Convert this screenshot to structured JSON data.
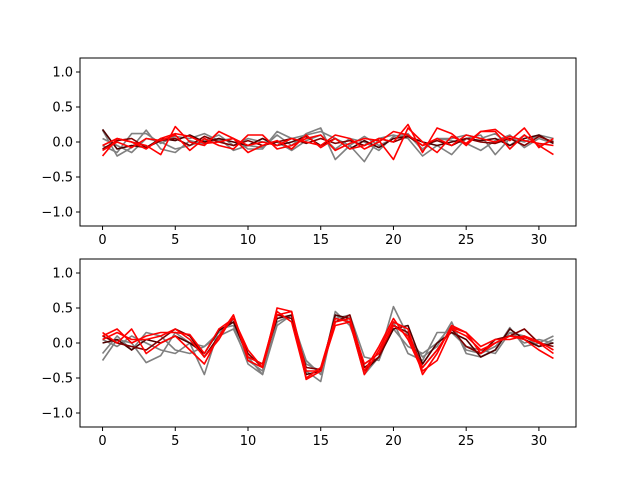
{
  "chart_data": [
    {
      "type": "line",
      "title": "",
      "xlabel": "",
      "ylabel": "",
      "xlim": [
        -1.55,
        32.55
      ],
      "ylim": [
        -1.2,
        1.2
      ],
      "xticks": [
        0,
        5,
        10,
        15,
        20,
        25,
        30
      ],
      "yticks": [
        -1.0,
        -0.5,
        0.0,
        0.5,
        1.0
      ],
      "xtick_labels": [
        "0",
        "5",
        "10",
        "15",
        "20",
        "25",
        "30"
      ],
      "ytick_labels": [
        "−1.0",
        "−0.5",
        "0.0",
        "0.5",
        "1.0"
      ],
      "grid": false,
      "x": [
        0,
        1,
        2,
        3,
        4,
        5,
        6,
        7,
        8,
        9,
        10,
        11,
        12,
        13,
        14,
        15,
        16,
        17,
        18,
        19,
        20,
        21,
        22,
        23,
        24,
        25,
        26,
        27,
        28,
        29,
        30,
        31
      ],
      "series": [
        {
          "color": "#808080",
          "values": [
            0.17,
            -0.2,
            -0.08,
            0.17,
            -0.1,
            -0.15,
            0.02,
            -0.03,
            0.05,
            -0.12,
            -0.05,
            -0.08,
            0.1,
            -0.05,
            0.12,
            0.2,
            -0.25,
            -0.05,
            -0.28,
            0.05,
            0.1,
            0.05,
            -0.2,
            -0.05,
            -0.18,
            0.05,
            0.1,
            -0.18,
            0.05,
            0.0,
            0.1,
            0.05
          ]
        },
        {
          "color": "#808080",
          "values": [
            -0.05,
            -0.15,
            0.12,
            0.12,
            -0.02,
            0.08,
            0.05,
            0.12,
            0.02,
            0.05,
            -0.1,
            -0.1,
            0.15,
            0.05,
            0.1,
            0.15,
            0.05,
            -0.05,
            0.08,
            -0.05,
            0.05,
            0.1,
            -0.1,
            0.05,
            0.05,
            0.1,
            0.05,
            0.12,
            -0.05,
            0.1,
            -0.05,
            0.02
          ]
        },
        {
          "color": "#808080",
          "values": [
            0.05,
            -0.05,
            -0.15,
            0.05,
            0.0,
            -0.1,
            -0.05,
            0.02,
            0.1,
            -0.05,
            0.05,
            0.0,
            0.0,
            -0.12,
            0.02,
            0.1,
            -0.1,
            0.05,
            0.0,
            -0.12,
            0.08,
            0.12,
            -0.12,
            0.05,
            0.02,
            -0.02,
            -0.12,
            0.02,
            0.1,
            -0.08,
            0.05,
            -0.02
          ]
        },
        {
          "color": "#4d0000",
          "values": [
            0.18,
            -0.1,
            -0.05,
            -0.08,
            0.05,
            0.02,
            0.1,
            0.0,
            0.05,
            0.0,
            -0.05,
            0.05,
            -0.05,
            0.0,
            0.08,
            -0.05,
            0.05,
            -0.1,
            0.02,
            -0.08,
            0.05,
            0.08,
            0.0,
            -0.05,
            0.0,
            0.05,
            0.02,
            0.05,
            -0.05,
            0.05,
            0.1,
            -0.02
          ]
        },
        {
          "color": "#800000",
          "values": [
            -0.1,
            0.02,
            0.05,
            -0.08,
            0.02,
            0.05,
            -0.05,
            0.08,
            0.0,
            -0.05,
            0.02,
            -0.05,
            0.0,
            0.05,
            -0.02,
            0.05,
            -0.02,
            0.02,
            -0.05,
            0.05,
            0.0,
            0.08,
            -0.05,
            0.02,
            -0.05,
            0.05,
            0.0,
            -0.02,
            0.05,
            -0.05,
            0.08,
            0.0
          ]
        },
        {
          "color": "#ff0000",
          "values": [
            -0.2,
            0.05,
            0.0,
            -0.05,
            -0.18,
            0.22,
            0.0,
            -0.05,
            0.15,
            0.05,
            -0.15,
            -0.05,
            0.02,
            -0.1,
            0.1,
            -0.08,
            0.05,
            -0.1,
            -0.05,
            0.05,
            0.0,
            0.25,
            -0.15,
            0.2,
            0.12,
            -0.05,
            0.15,
            0.18,
            0.02,
            0.2,
            -0.08,
            0.05
          ]
        },
        {
          "color": "#ff0000",
          "values": [
            -0.12,
            0.0,
            -0.08,
            0.05,
            0.02,
            0.1,
            -0.12,
            0.05,
            -0.05,
            -0.1,
            0.1,
            0.1,
            -0.1,
            -0.05,
            0.05,
            0.1,
            -0.12,
            -0.02,
            0.05,
            0.02,
            -0.25,
            0.2,
            0.0,
            -0.15,
            0.08,
            -0.02,
            0.15,
            0.15,
            -0.1,
            0.1,
            -0.05,
            -0.18
          ]
        },
        {
          "color": "#ff0000",
          "values": [
            -0.05,
            0.05,
            0.0,
            -0.1,
            0.05,
            0.12,
            0.08,
            -0.02,
            0.0,
            0.05,
            -0.05,
            0.0,
            -0.05,
            0.05,
            0.0,
            -0.05,
            0.1,
            0.05,
            -0.1,
            0.0,
            0.15,
            0.1,
            -0.05,
            0.05,
            -0.05,
            0.1,
            0.05,
            0.0,
            0.08,
            0.02,
            -0.02,
            -0.05
          ]
        }
      ]
    },
    {
      "type": "line",
      "title": "",
      "xlabel": "",
      "ylabel": "",
      "xlim": [
        -1.55,
        32.55
      ],
      "ylim": [
        -1.2,
        1.2
      ],
      "xticks": [
        0,
        5,
        10,
        15,
        20,
        25,
        30
      ],
      "yticks": [
        -1.0,
        -0.5,
        0.0,
        0.5,
        1.0
      ],
      "xtick_labels": [
        "0",
        "5",
        "10",
        "15",
        "20",
        "25",
        "30"
      ],
      "ytick_labels": [
        "−1.0",
        "−0.5",
        "0.0",
        "0.5",
        "1.0"
      ],
      "grid": false,
      "x": [
        0,
        1,
        2,
        3,
        4,
        5,
        6,
        7,
        8,
        9,
        10,
        11,
        12,
        13,
        14,
        15,
        16,
        17,
        18,
        19,
        20,
        21,
        22,
        23,
        24,
        25,
        26,
        27,
        28,
        29,
        30,
        31
      ],
      "series": [
        {
          "color": "#808080",
          "values": [
            -0.25,
            0.05,
            0.0,
            -0.28,
            -0.18,
            0.15,
            0.0,
            -0.45,
            0.2,
            0.25,
            -0.3,
            -0.45,
            0.3,
            0.4,
            -0.4,
            -0.55,
            0.4,
            0.3,
            -0.45,
            -0.2,
            0.52,
            0.1,
            -0.2,
            -0.05,
            0.3,
            -0.15,
            -0.2,
            -0.1,
            0.22,
            -0.05,
            0.0,
            0.1
          ]
        },
        {
          "color": "#808080",
          "values": [
            -0.15,
            0.1,
            -0.1,
            0.15,
            0.1,
            -0.1,
            -0.15,
            -0.05,
            0.15,
            0.3,
            -0.2,
            -0.45,
            0.25,
            0.4,
            -0.3,
            -0.4,
            0.35,
            0.4,
            -0.2,
            -0.25,
            0.3,
            -0.15,
            -0.25,
            0.15,
            0.15,
            -0.05,
            -0.1,
            -0.15,
            0.15,
            0.1,
            -0.05,
            0.05
          ]
        },
        {
          "color": "#808080",
          "values": [
            0.05,
            -0.05,
            0.1,
            0.0,
            -0.1,
            -0.15,
            0.0,
            -0.05,
            0.1,
            0.2,
            -0.25,
            -0.4,
            0.4,
            0.35,
            -0.25,
            -0.45,
            0.45,
            0.25,
            -0.3,
            -0.15,
            0.2,
            -0.05,
            -0.15,
            0.0,
            0.25,
            -0.1,
            -0.15,
            -0.05,
            0.15,
            0.0,
            0.05,
            0.0
          ]
        },
        {
          "color": "#4d0000",
          "values": [
            0.0,
            0.05,
            -0.1,
            0.05,
            0.0,
            0.1,
            0.0,
            -0.15,
            0.18,
            0.3,
            -0.2,
            -0.3,
            0.35,
            0.4,
            -0.45,
            -0.4,
            0.4,
            0.35,
            -0.4,
            -0.2,
            0.2,
            0.25,
            -0.3,
            0.0,
            0.15,
            0.05,
            -0.2,
            -0.1,
            0.2,
            0.05,
            -0.05,
            0.0
          ]
        },
        {
          "color": "#800000",
          "values": [
            0.1,
            0.0,
            -0.05,
            -0.1,
            0.05,
            0.2,
            0.1,
            -0.2,
            0.1,
            0.35,
            -0.15,
            -0.35,
            0.4,
            0.35,
            -0.35,
            -0.38,
            0.3,
            0.4,
            -0.35,
            -0.2,
            0.25,
            0.15,
            -0.35,
            -0.1,
            0.2,
            -0.05,
            -0.15,
            0.05,
            0.1,
            0.2,
            0.0,
            -0.05
          ]
        },
        {
          "color": "#ff0000",
          "values": [
            0.15,
            0.0,
            0.2,
            -0.15,
            0.0,
            0.1,
            -0.1,
            -0.3,
            0.1,
            0.4,
            -0.25,
            -0.35,
            0.5,
            0.45,
            -0.52,
            -0.4,
            0.25,
            0.3,
            -0.45,
            -0.1,
            0.3,
            0.2,
            -0.45,
            -0.15,
            0.25,
            0.15,
            -0.15,
            0.0,
            0.1,
            0.05,
            -0.1,
            -0.22
          ]
        },
        {
          "color": "#ff0000",
          "values": [
            0.05,
            0.15,
            0.05,
            0.05,
            0.1,
            0.2,
            0.05,
            -0.2,
            0.05,
            0.4,
            -0.2,
            -0.3,
            0.45,
            0.3,
            -0.5,
            -0.35,
            0.35,
            0.3,
            -0.4,
            -0.05,
            0.35,
            0.05,
            -0.4,
            -0.25,
            0.2,
            0.1,
            -0.1,
            0.0,
            0.1,
            0.08,
            0.0,
            -0.15
          ]
        },
        {
          "color": "#ff0000",
          "values": [
            0.1,
            0.2,
            0.0,
            0.1,
            0.15,
            0.15,
            0.12,
            -0.15,
            0.2,
            0.35,
            -0.1,
            -0.35,
            0.4,
            0.45,
            -0.4,
            -0.4,
            0.3,
            0.35,
            -0.3,
            -0.15,
            0.25,
            0.1,
            -0.35,
            -0.1,
            0.22,
            0.15,
            -0.05,
            0.05,
            0.05,
            0.1,
            0.02,
            -0.1
          ]
        }
      ]
    }
  ]
}
